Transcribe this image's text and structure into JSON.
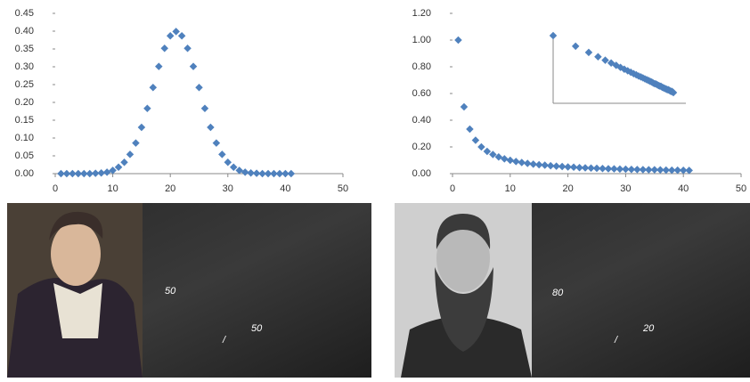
{
  "chart_data": [
    {
      "type": "scatter",
      "color": "#4f81bd",
      "x": [
        1,
        2,
        3,
        4,
        5,
        6,
        7,
        8,
        9,
        10,
        11,
        12,
        13,
        14,
        15,
        16,
        17,
        18,
        19,
        20,
        21,
        22,
        23,
        24,
        25,
        26,
        27,
        28,
        29,
        30,
        31,
        32,
        33,
        34,
        35,
        36,
        37,
        38,
        39,
        40,
        41
      ],
      "values": [
        0,
        0,
        0,
        0,
        0,
        0,
        0.001,
        0.002,
        0.004,
        0.009,
        0.018,
        0.032,
        0.054,
        0.086,
        0.13,
        0.183,
        0.242,
        0.301,
        0.352,
        0.387,
        0.399,
        0.387,
        0.352,
        0.301,
        0.242,
        0.183,
        0.13,
        0.086,
        0.054,
        0.032,
        0.018,
        0.009,
        0.004,
        0.002,
        0.001,
        0,
        0,
        0,
        0,
        0,
        0
      ],
      "xlim": [
        0,
        50
      ],
      "xticks": [
        0,
        10,
        20,
        30,
        40,
        50
      ],
      "ylim": [
        0,
        0.45
      ],
      "yticks": [
        {
          "value": 0,
          "label": "0.00"
        },
        {
          "value": 0.05,
          "label": "0.05"
        },
        {
          "value": 0.1,
          "label": "0.10"
        },
        {
          "value": 0.15,
          "label": "0.15"
        },
        {
          "value": 0.2,
          "label": "0.20"
        },
        {
          "value": 0.25,
          "label": "0.25"
        },
        {
          "value": 0.3,
          "label": "0.30"
        },
        {
          "value": 0.35,
          "label": "0.35"
        },
        {
          "value": 0.4,
          "label": "0.40"
        },
        {
          "value": 0.45,
          "label": "0.45"
        }
      ]
    },
    {
      "type": "scatter",
      "color": "#4f81bd",
      "x": [
        1,
        2,
        3,
        4,
        5,
        6,
        7,
        8,
        9,
        10,
        11,
        12,
        13,
        14,
        15,
        16,
        17,
        18,
        19,
        20,
        21,
        22,
        23,
        24,
        25,
        26,
        27,
        28,
        29,
        30,
        31,
        32,
        33,
        34,
        35,
        36,
        37,
        38,
        39,
        40,
        41
      ],
      "values": [
        1,
        0.5,
        0.333,
        0.25,
        0.2,
        0.167,
        0.143,
        0.125,
        0.111,
        0.1,
        0.091,
        0.083,
        0.077,
        0.071,
        0.067,
        0.063,
        0.059,
        0.056,
        0.053,
        0.05,
        0.048,
        0.045,
        0.043,
        0.042,
        0.04,
        0.038,
        0.037,
        0.036,
        0.034,
        0.033,
        0.032,
        0.031,
        0.03,
        0.029,
        0.029,
        0.028,
        0.027,
        0.026,
        0.026,
        0.025,
        0.024
      ],
      "xlim": [
        0,
        50
      ],
      "xticks": [
        0,
        10,
        20,
        30,
        40,
        50
      ],
      "ylim": [
        0,
        1.2
      ],
      "yticks": [
        {
          "value": 0,
          "label": "0.00"
        },
        {
          "value": 0.2,
          "label": "0.20"
        },
        {
          "value": 0.4,
          "label": "0.40"
        },
        {
          "value": 0.6,
          "label": "0.60"
        },
        {
          "value": 0.8,
          "label": "0.80"
        },
        {
          "value": 1,
          "label": "1.00"
        },
        {
          "value": 1.2,
          "label": "1.20"
        }
      ],
      "inset": {
        "log_scale": true
      }
    }
  ],
  "panels": [
    {
      "top": "50",
      "slash": "/",
      "bottom": "50"
    },
    {
      "top": "80",
      "slash": "/",
      "bottom": "20"
    }
  ]
}
